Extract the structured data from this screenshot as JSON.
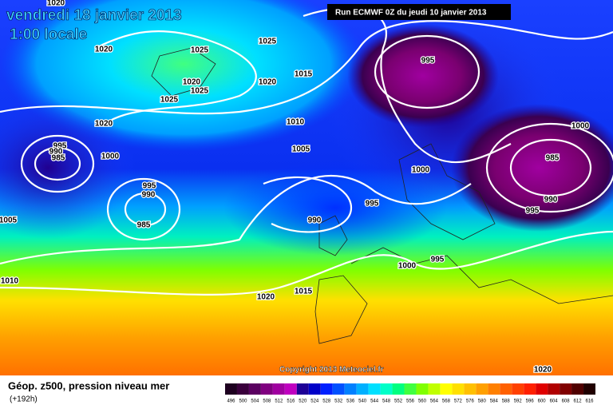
{
  "header": {
    "date": "vendredi 18 janvier 2013",
    "time": "1:00 locale",
    "run": "Run ECMWF 0Z du jeudi 10 janvier 2013"
  },
  "map": {
    "isobar_labels": [
      "1020",
      "1020",
      "1025",
      "1025",
      "1020",
      "1025",
      "1025",
      "1020",
      "1015",
      "1020",
      "1010",
      "995",
      "990",
      "985",
      "1000",
      "1005",
      "995",
      "990",
      "985",
      "1005",
      "995",
      "1000",
      "985",
      "1000",
      "990",
      "995",
      "995",
      "990",
      "1000",
      "995",
      "1010",
      "1020",
      "1015",
      "1020"
    ],
    "copyright": "Copyright 2013 Meteociel.fr"
  },
  "footer": {
    "title": "Géop. z500, pression niveau mer",
    "lead": "(+192h)",
    "scale": [
      {
        "label": "496",
        "color": "#1e0020"
      },
      {
        "label": "500",
        "color": "#3a003c"
      },
      {
        "label": "504",
        "color": "#5a0060"
      },
      {
        "label": "508",
        "color": "#800080"
      },
      {
        "label": "512",
        "color": "#a000a0"
      },
      {
        "label": "516",
        "color": "#c000c0"
      },
      {
        "label": "520",
        "color": "#1e0096"
      },
      {
        "label": "524",
        "color": "#0000c8"
      },
      {
        "label": "528",
        "color": "#0020ff"
      },
      {
        "label": "532",
        "color": "#0050ff"
      },
      {
        "label": "536",
        "color": "#0080ff"
      },
      {
        "label": "540",
        "color": "#00b0ff"
      },
      {
        "label": "544",
        "color": "#00e0ff"
      },
      {
        "label": "548",
        "color": "#00ffc8"
      },
      {
        "label": "552",
        "color": "#00ff80"
      },
      {
        "label": "556",
        "color": "#40ff40"
      },
      {
        "label": "560",
        "color": "#80ff00"
      },
      {
        "label": "564",
        "color": "#c0ff00"
      },
      {
        "label": "568",
        "color": "#ffff00"
      },
      {
        "label": "572",
        "color": "#ffe000"
      },
      {
        "label": "576",
        "color": "#ffc000"
      },
      {
        "label": "580",
        "color": "#ffa000"
      },
      {
        "label": "584",
        "color": "#ff8000"
      },
      {
        "label": "588",
        "color": "#ff6000"
      },
      {
        "label": "592",
        "color": "#ff4000"
      },
      {
        "label": "596",
        "color": "#ff2000"
      },
      {
        "label": "600",
        "color": "#e00000"
      },
      {
        "label": "604",
        "color": "#b00000"
      },
      {
        "label": "608",
        "color": "#800000"
      },
      {
        "label": "612",
        "color": "#500000"
      },
      {
        "label": "616",
        "color": "#200000"
      }
    ]
  }
}
